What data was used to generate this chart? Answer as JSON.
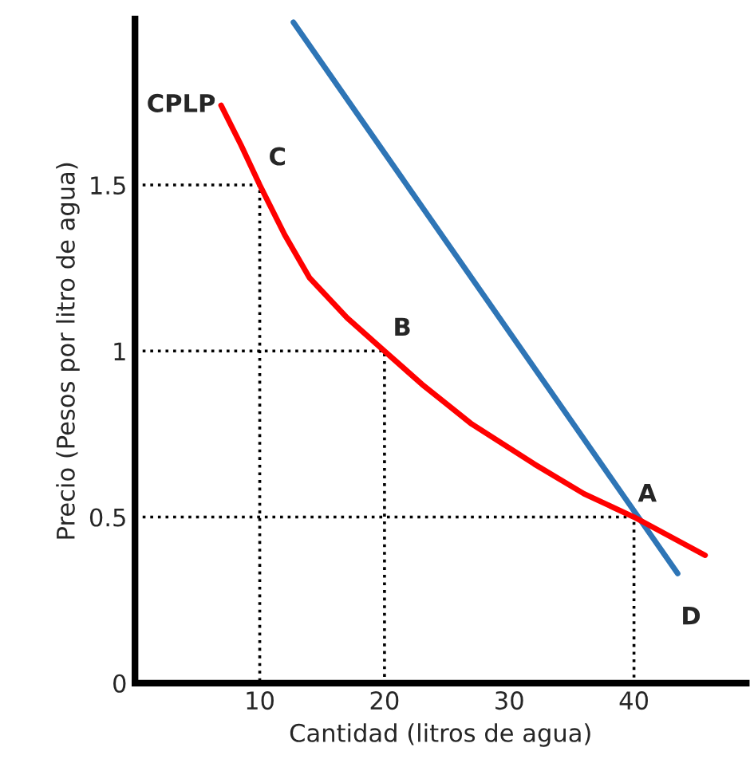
{
  "chart_data": {
    "type": "line",
    "xlabel": "Cantidad (litros de agua)",
    "ylabel": "Precio (Pesos por litro de agua)",
    "xlim": [
      0,
      49
    ],
    "ylim": [
      0,
      2.0
    ],
    "xticks": [
      10,
      20,
      30,
      40
    ],
    "yticks": [
      0,
      0.5,
      1,
      1.5
    ],
    "grid": false,
    "legend": false,
    "marker": "none",
    "series": [
      {
        "color": "#000000",
        "line_style": "dotted",
        "x": [
          0,
          10,
          10
        ],
        "values": [
          1.5,
          1.5,
          0
        ]
      },
      {
        "color": "#000000",
        "line_style": "dotted",
        "x": [
          0,
          20,
          20
        ],
        "values": [
          1.0,
          1.0,
          0
        ]
      },
      {
        "color": "#000000",
        "line_style": "dotted",
        "x": [
          0,
          40,
          40
        ],
        "values": [
          0.5,
          0.5,
          0
        ]
      },
      {
        "color": "#2e75b6",
        "line_style": "solid",
        "x": [
          12.7,
          43.5
        ],
        "values": [
          1.99,
          0.33
        ]
      },
      {
        "color": "#ff0000",
        "line_style": "solid",
        "x": [
          6.9,
          8.5,
          10,
          12,
          14,
          17,
          20,
          23,
          27,
          32,
          36,
          40,
          45.7
        ],
        "values": [
          1.74,
          1.62,
          1.5,
          1.35,
          1.22,
          1.1,
          1.0,
          0.9,
          0.78,
          0.66,
          0.57,
          0.5,
          0.385
        ]
      }
    ],
    "annotations": [
      {
        "text": "CPLP",
        "x": 6.9,
        "y": 1.74
      },
      {
        "text": "C",
        "x": 10,
        "y": 1.5
      },
      {
        "text": "B",
        "x": 20,
        "y": 1.0
      },
      {
        "text": "A",
        "x": 40,
        "y": 0.5
      },
      {
        "text": "D",
        "x": 43.5,
        "y": 0.33
      }
    ]
  }
}
